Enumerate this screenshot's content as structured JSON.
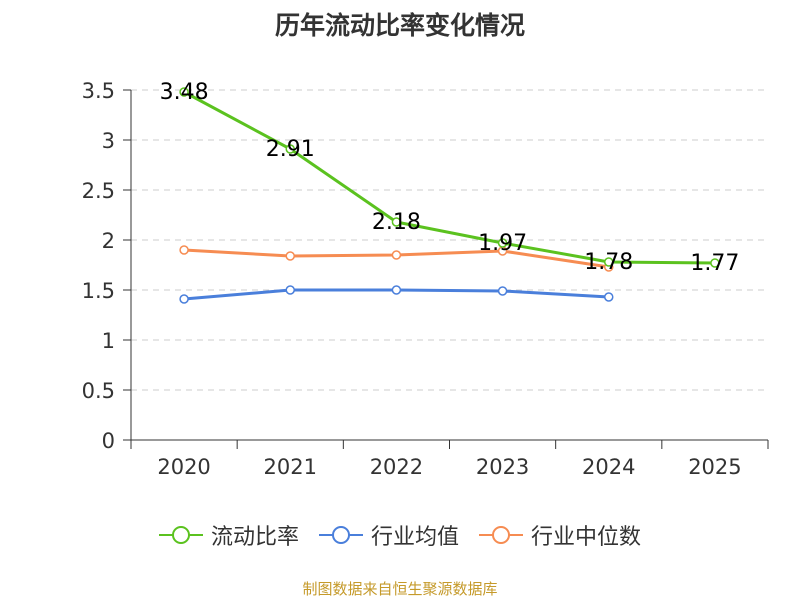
{
  "chart_data": {
    "type": "line",
    "title": "历年流动比率变化情况",
    "categories": [
      "2020",
      "2021",
      "2022",
      "2023",
      "2024",
      "2025"
    ],
    "ylim": [
      0,
      3.5
    ],
    "yticks": [
      0,
      0.5,
      1,
      1.5,
      2,
      2.5,
      3,
      3.5
    ],
    "ytick_labels": [
      "0",
      "0.5",
      "1",
      "1.5",
      "2",
      "2.5",
      "3",
      "3.5"
    ],
    "grid": true,
    "legend_position": "bottom",
    "series": [
      {
        "name": "流动比率",
        "color": "#5bc21f",
        "values": [
          3.48,
          2.91,
          2.18,
          1.97,
          1.78,
          1.77
        ],
        "labels": [
          "3.48",
          "2.91",
          "2.18",
          "1.97",
          "1.78",
          "1.77"
        ],
        "show_markers": true
      },
      {
        "name": "行业均值",
        "color": "#4a7fdb",
        "values": [
          1.41,
          1.5,
          1.5,
          1.49,
          1.43,
          null
        ],
        "show_markers": true
      },
      {
        "name": "行业中位数",
        "color": "#f68c52",
        "values": [
          1.9,
          1.84,
          1.85,
          1.89,
          1.73,
          null
        ],
        "show_markers": true
      }
    ]
  },
  "source": "制图数据来自恒生聚源数据库"
}
